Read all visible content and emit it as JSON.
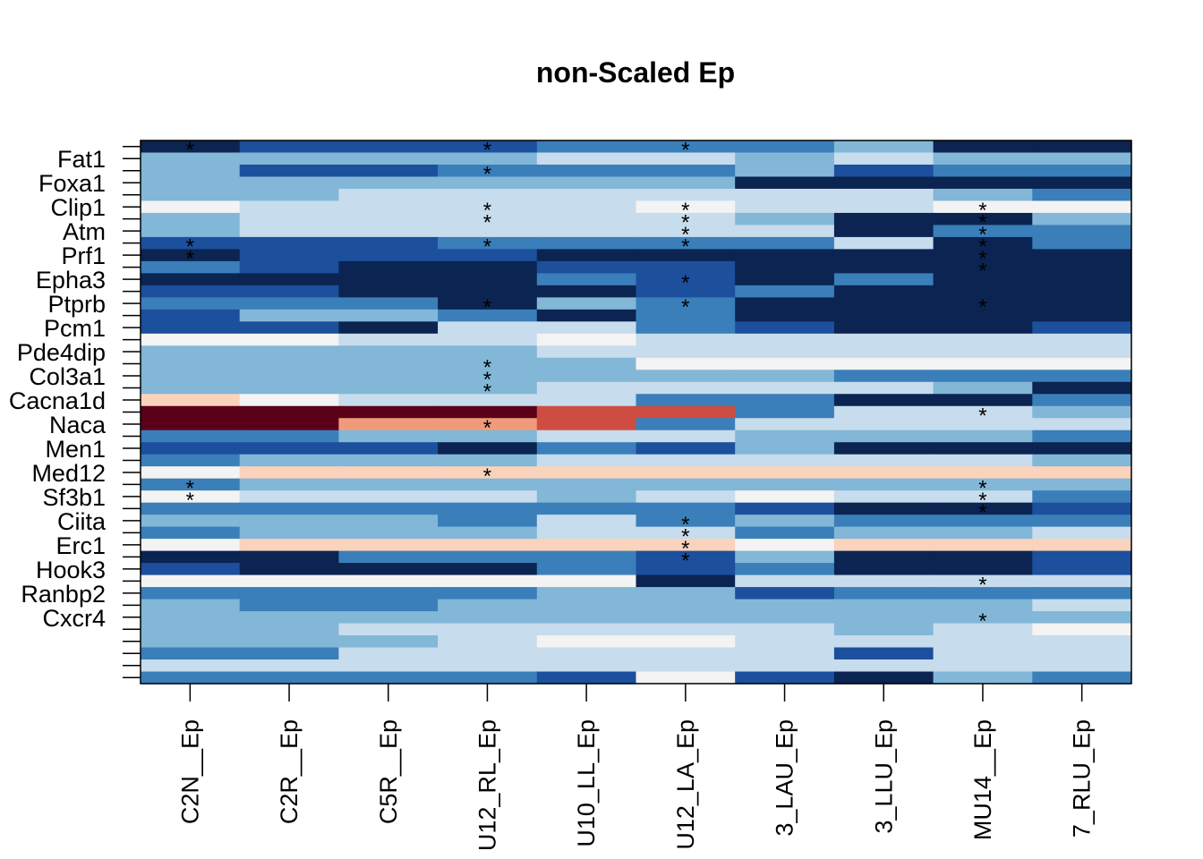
{
  "chart_data": {
    "type": "heatmap",
    "title": "non-Scaled Ep",
    "columns": [
      "C2N__Ep",
      "C2R__Ep",
      "C5R__Ep",
      "U12_RL_Ep",
      "U10_LL_Ep",
      "U12_LA_Ep",
      "3_LAU_Ep",
      "3_LLU_Ep",
      "MU14__Ep",
      "7_RLU_Ep"
    ],
    "row_labels_shown": [
      "Fat1",
      "Foxa1",
      "Clip1",
      "Atm",
      "Prf1",
      "Epha3",
      "Ptprb",
      "Pcm1",
      "Pde4dip",
      "Col3a1",
      "Cacna1d",
      "Naca",
      "Men1",
      "Med12",
      "Sf3b1",
      "Ciita",
      "Erc1",
      "Hook3",
      "Ranbp2",
      "Cxcr4"
    ],
    "palette": {
      "0": "#0b2452",
      "1": "#1c4f9c",
      "2": "#3a7fb9",
      "3": "#82b7d7",
      "4": "#c7dcec",
      "5": "#f3f3f3",
      "6": "#fad3bc",
      "7": "#ef9b7b",
      "8": "#cd4d43",
      "9": "#5a0019"
    },
    "matrix": [
      "0111222300",
      "3333443433",
      "3112223122",
      "3333330000",
      "3344444432",
      "5444454455",
      "3444443003",
      "3444444022",
      "1112222402",
      "0111000000",
      "2100110000",
      "0000210200",
      "1100012000",
      "2220320000",
      "1332020000",
      "1104421001",
      "5544544444",
      "3333444444",
      "3333355555",
      "3333333222",
      "3333444430",
      "6544422002",
      "9999882443",
      "9977824444",
      "2233443332",
      "1110213000",
      "2333444443",
      "5666666666",
      "2333333333",
      "5444345442",
      "2222221001",
      "3332423222",
      "2333442334",
      "5666665666",
      "0022213001",
      "1000212001",
      "5555504444",
      "2222331222",
      "3223333334",
      "3333333333",
      "3344444345",
      "3334554444",
      "2244444144",
      "4444444444",
      "2222151032"
    ],
    "stars": [
      [
        0,
        0
      ],
      [
        0,
        3
      ],
      [
        0,
        5
      ],
      [
        2,
        3
      ],
      [
        5,
        3
      ],
      [
        5,
        5
      ],
      [
        5,
        8
      ],
      [
        6,
        3
      ],
      [
        6,
        5
      ],
      [
        6,
        8
      ],
      [
        7,
        5
      ],
      [
        7,
        8
      ],
      [
        8,
        0
      ],
      [
        8,
        3
      ],
      [
        8,
        5
      ],
      [
        8,
        8
      ],
      [
        9,
        0
      ],
      [
        9,
        8
      ],
      [
        10,
        8
      ],
      [
        11,
        5
      ],
      [
        13,
        3
      ],
      [
        13,
        5
      ],
      [
        13,
        8
      ],
      [
        18,
        3
      ],
      [
        19,
        3
      ],
      [
        20,
        3
      ],
      [
        22,
        8
      ],
      [
        23,
        3
      ],
      [
        27,
        3
      ],
      [
        28,
        0
      ],
      [
        28,
        8
      ],
      [
        29,
        0
      ],
      [
        29,
        8
      ],
      [
        30,
        8
      ],
      [
        31,
        5
      ],
      [
        32,
        5
      ],
      [
        33,
        5
      ],
      [
        34,
        5
      ],
      [
        36,
        8
      ],
      [
        39,
        8
      ]
    ],
    "grid": false,
    "legend": "none"
  }
}
